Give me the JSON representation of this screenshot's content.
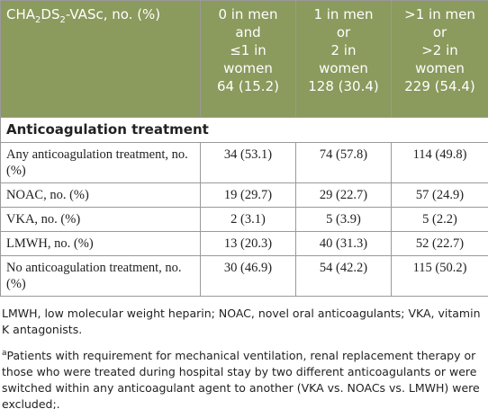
{
  "table": {
    "header": {
      "first": [
        "CHA",
        "2",
        "DS",
        "2",
        "-VASc, no. (%)"
      ],
      "columns": [
        [
          "0 in men",
          "and",
          "≤1 in",
          "women",
          "64 (15.2)"
        ],
        [
          "1 in men",
          "or",
          "2 in",
          "women",
          "128 (30.4)"
        ],
        [
          ">1 in men",
          "or",
          ">2 in",
          "women",
          "229 (54.4)"
        ]
      ]
    },
    "section": "Anticoagulation treatment",
    "rows": [
      [
        "Any anticoagulation treatment, no. (%)",
        "34 (53.1)",
        "74 (57.8)",
        "114 (49.8)"
      ],
      [
        "NOAC, no. (%)",
        "19 (29.7)",
        "29 (22.7)",
        "57 (24.9)"
      ],
      [
        "VKA, no. (%)",
        "2 (3.1)",
        "5 (3.9)",
        "5 (2.2)"
      ],
      [
        "LMWH, no. (%)",
        "13 (20.3)",
        "40 (31.3)",
        "52 (22.7)"
      ],
      [
        "No anticoagulation treatment, no. (%)",
        "30 (46.9)",
        "54 (42.2)",
        "115 (50.2)"
      ]
    ]
  },
  "footnotes": {
    "abbreviations": "LMWH, low molecular weight heparin; NOAC, novel oral anticoagulants; VKA, vitamin K antagonists.",
    "marker": "a",
    "note": "Patients with requirement for mechanical ventilation, renal replacement therapy or those who were treated during hospital stay by two different anticoagulants or were switched within any anticoagulant agent to another (VKA vs. NOACs vs. LMWH) were excluded;."
  }
}
